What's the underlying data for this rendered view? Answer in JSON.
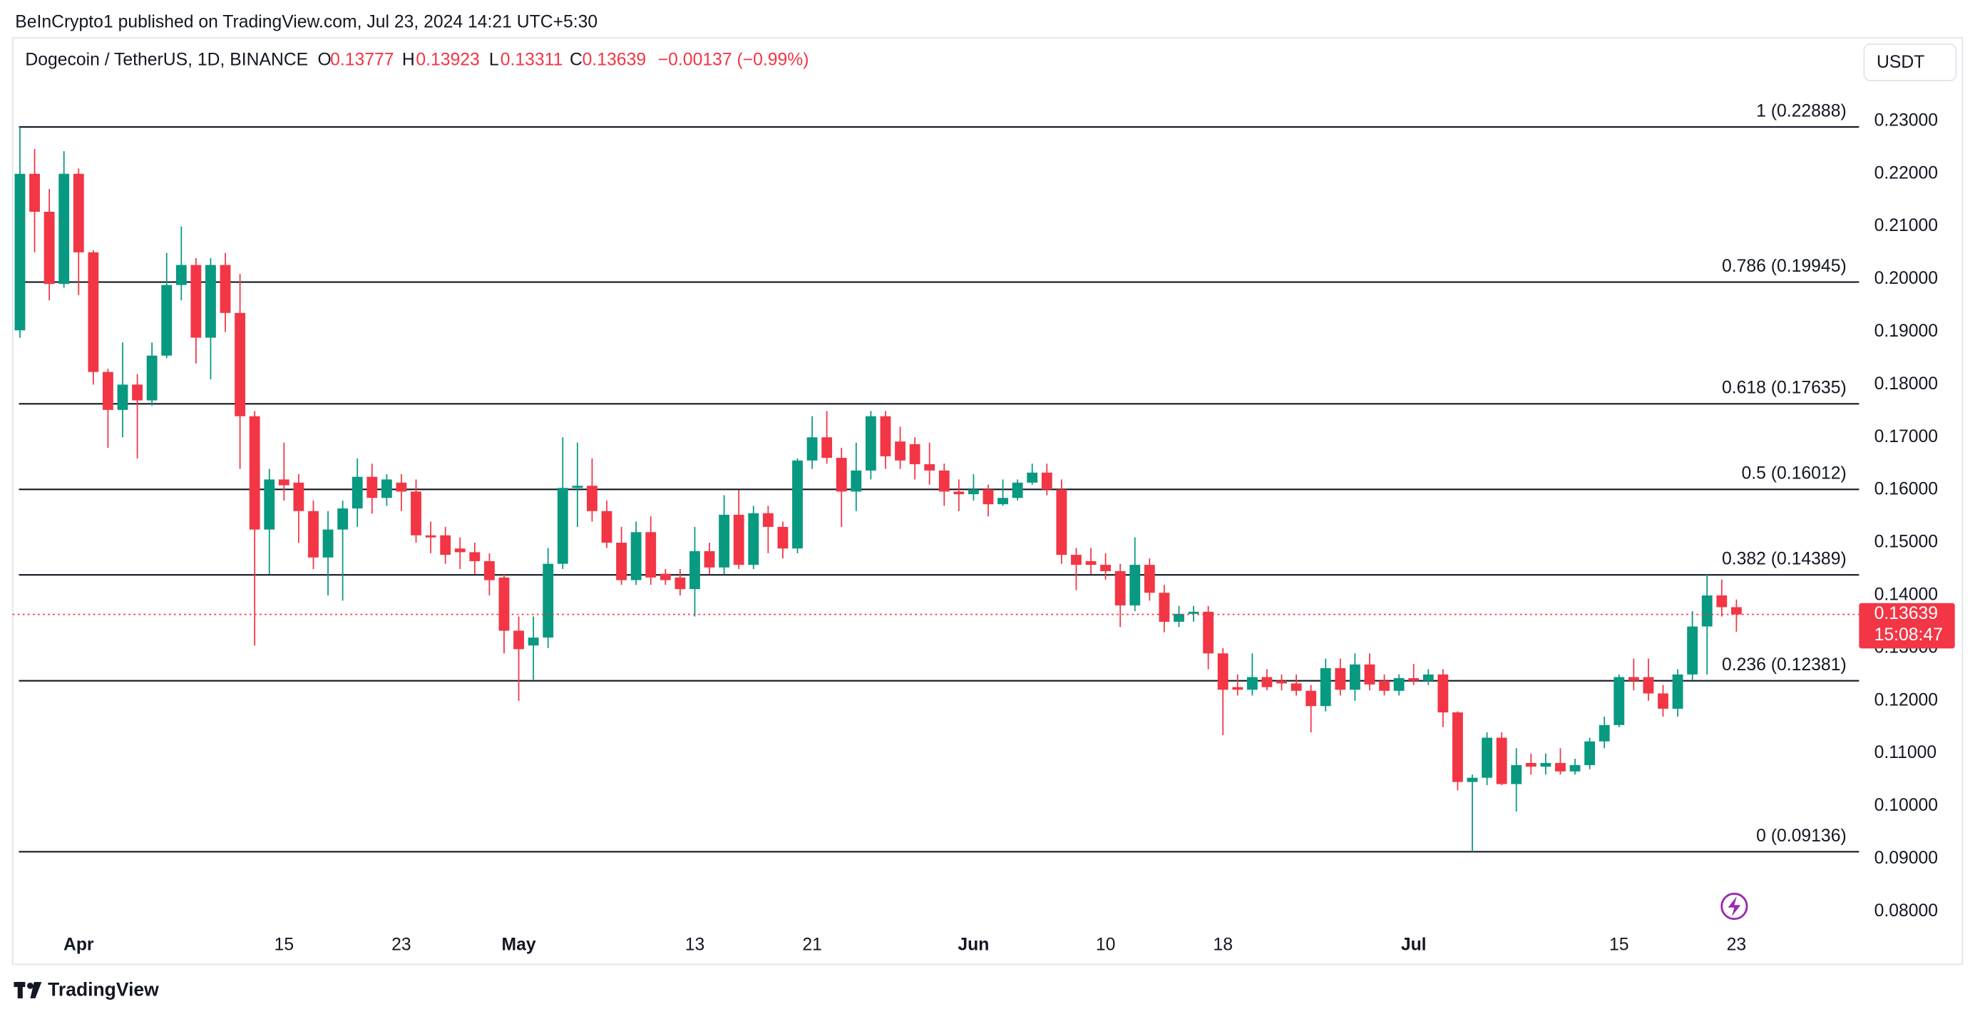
{
  "header": {
    "published": "BeInCrypto1 published on TradingView.com, Jul 23, 2024 14:21 UTC+5:30",
    "symbol": "Dogecoin / TetherUS, 1D, BINANCE",
    "ohlc": [
      {
        "key": "O",
        "value": 0.13777
      },
      {
        "key": "H",
        "value": 0.13923
      },
      {
        "key": "L",
        "value": 0.13311
      },
      {
        "key": "C",
        "value": 0.13639
      }
    ],
    "change": "−0.00137 (−0.99%)",
    "currency": "USDT",
    "logo": "TradingView"
  },
  "chart_data": {
    "type": "candlestick",
    "up_color": "#089981",
    "down_color": "#f23645",
    "categories": [
      "Mar 28",
      "Mar 29",
      "Mar 30",
      "Mar 31",
      "Apr 1",
      "Apr 2",
      "Apr 3",
      "Apr 4",
      "Apr 5",
      "Apr 6",
      "Apr 7",
      "Apr 8",
      "Apr 9",
      "Apr 10",
      "Apr 11",
      "Apr 12",
      "Apr 13",
      "Apr 14",
      "Apr 15",
      "Apr 16",
      "Apr 17",
      "Apr 18",
      "Apr 19",
      "Apr 20",
      "Apr 21",
      "Apr 22",
      "Apr 23",
      "Apr 24",
      "Apr 25",
      "Apr 26",
      "Apr 27",
      "Apr 28",
      "Apr 29",
      "Apr 30",
      "May 1",
      "May 2",
      "May 3",
      "May 4",
      "May 5",
      "May 6",
      "May 7",
      "May 8",
      "May 9",
      "May 10",
      "May 11",
      "May 12",
      "May 13",
      "May 14",
      "May 15",
      "May 16",
      "May 17",
      "May 18",
      "May 19",
      "May 20",
      "May 21",
      "May 22",
      "May 23",
      "May 24",
      "May 25",
      "May 26",
      "May 27",
      "May 28",
      "May 29",
      "May 30",
      "May 31",
      "Jun 1",
      "Jun 2",
      "Jun 3",
      "Jun 4",
      "Jun 5",
      "Jun 6",
      "Jun 7",
      "Jun 8",
      "Jun 9",
      "Jun 10",
      "Jun 11",
      "Jun 12",
      "Jun 13",
      "Jun 14",
      "Jun 15",
      "Jun 16",
      "Jun 17",
      "Jun 18",
      "Jun 19",
      "Jun 20",
      "Jun 21",
      "Jun 22",
      "Jun 23",
      "Jun 24",
      "Jun 25",
      "Jun 26",
      "Jun 27",
      "Jun 28",
      "Jun 29",
      "Jun 30",
      "Jul 1",
      "Jul 2",
      "Jul 3",
      "Jul 4",
      "Jul 5",
      "Jul 6",
      "Jul 7",
      "Jul 8",
      "Jul 9",
      "Jul 10",
      "Jul 11",
      "Jul 12",
      "Jul 13",
      "Jul 14",
      "Jul 15",
      "Jul 16",
      "Jul 17",
      "Jul 18",
      "Jul 19",
      "Jul 20",
      "Jul 21",
      "Jul 22",
      "Jul 23"
    ],
    "open": [
      0.1903,
      0.22,
      0.2128,
      0.1991,
      0.22,
      0.2051,
      0.1824,
      0.1752,
      0.18,
      0.177,
      0.1855,
      0.1989,
      0.2027,
      0.1889,
      0.2027,
      0.1936,
      0.174,
      0.1525,
      0.162,
      0.1614,
      0.156,
      0.1472,
      0.1525,
      0.1565,
      0.1625,
      0.1585,
      0.1614,
      0.1597,
      0.1514,
      0.1514,
      0.1489,
      0.1482,
      0.1465,
      0.1434,
      0.1333,
      0.1305,
      0.132,
      0.146,
      0.1604,
      0.1608,
      0.156,
      0.15,
      0.1429,
      0.152,
      0.1441,
      0.1434,
      0.1412,
      0.1484,
      0.1453,
      0.1553,
      0.1458,
      0.1556,
      0.153,
      0.1489,
      0.1656,
      0.17,
      0.1661,
      0.1597,
      0.1637,
      0.174,
      0.1692,
      0.1687,
      0.1649,
      0.1637,
      0.1597,
      0.1592,
      0.1601,
      0.1573,
      0.1585,
      0.1614,
      0.1633,
      0.1601,
      0.1477,
      0.1465,
      0.1458,
      0.1446,
      0.1381,
      0.1458,
      0.1405,
      0.135,
      0.1365,
      0.1369,
      0.129,
      0.1226,
      0.1221,
      0.1245,
      0.1238,
      0.1233,
      0.1219,
      0.119,
      0.1262,
      0.1221,
      0.1269,
      0.1238,
      0.1219,
      0.1243,
      0.1238,
      0.125,
      0.1178,
      0.1046,
      0.1054,
      0.113,
      0.1042,
      0.1082,
      0.1075,
      0.1082,
      0.1066,
      0.1078,
      0.1123,
      0.1154,
      0.1245,
      0.1245,
      0.1214,
      0.1185,
      0.125,
      0.1341,
      0.14,
      0.13777
    ],
    "high": [
      0.22888,
      0.2247,
      0.2171,
      0.2243,
      0.221,
      0.2055,
      0.183,
      0.188,
      0.182,
      0.188,
      0.205,
      0.21,
      0.204,
      0.204,
      0.205,
      0.201,
      0.175,
      0.164,
      0.169,
      0.163,
      0.158,
      0.156,
      0.158,
      0.166,
      0.165,
      0.163,
      0.163,
      0.162,
      0.154,
      0.153,
      0.151,
      0.15,
      0.148,
      0.144,
      0.136,
      0.136,
      0.149,
      0.17,
      0.169,
      0.166,
      0.158,
      0.153,
      0.154,
      0.155,
      0.145,
      0.145,
      0.153,
      0.15,
      0.159,
      0.16,
      0.157,
      0.157,
      0.154,
      0.166,
      0.174,
      0.175,
      0.168,
      0.169,
      0.175,
      0.175,
      0.172,
      0.17,
      0.169,
      0.165,
      0.162,
      0.163,
      0.161,
      0.162,
      0.162,
      0.165,
      0.165,
      0.162,
      0.149,
      0.149,
      0.148,
      0.146,
      0.151,
      0.147,
      0.142,
      0.138,
      0.138,
      0.138,
      0.13,
      0.125,
      0.129,
      0.126,
      0.125,
      0.125,
      0.123,
      0.128,
      0.128,
      0.129,
      0.129,
      0.125,
      0.125,
      0.127,
      0.126,
      0.126,
      0.118,
      0.106,
      0.114,
      0.114,
      0.111,
      0.11,
      0.11,
      0.111,
      0.109,
      0.113,
      0.117,
      0.125,
      0.128,
      0.128,
      0.123,
      0.126,
      0.137,
      0.144,
      0.143,
      0.13923
    ],
    "low": [
      0.1889,
      0.2051,
      0.196,
      0.1984,
      0.197,
      0.18,
      0.168,
      0.17,
      0.166,
      0.176,
      0.185,
      0.196,
      0.184,
      0.181,
      0.19,
      0.164,
      0.1305,
      0.144,
      0.158,
      0.15,
      0.145,
      0.14,
      0.139,
      0.153,
      0.1555,
      0.157,
      0.156,
      0.15,
      0.148,
      0.146,
      0.145,
      0.144,
      0.14,
      0.129,
      0.12,
      0.124,
      0.13,
      0.145,
      0.153,
      0.154,
      0.149,
      0.142,
      0.142,
      0.142,
      0.142,
      0.14,
      0.136,
      0.144,
      0.144,
      0.145,
      0.145,
      0.148,
      0.147,
      0.148,
      0.164,
      0.165,
      0.153,
      0.156,
      0.162,
      0.164,
      0.164,
      0.162,
      0.161,
      0.157,
      0.156,
      0.158,
      0.155,
      0.157,
      0.158,
      0.161,
      0.159,
      0.146,
      0.141,
      0.144,
      0.143,
      0.134,
      0.137,
      0.139,
      0.133,
      0.134,
      0.135,
      0.126,
      0.1135,
      0.121,
      0.121,
      0.122,
      0.122,
      0.121,
      0.114,
      0.118,
      0.121,
      0.12,
      0.122,
      0.121,
      0.121,
      0.123,
      0.123,
      0.115,
      0.103,
      0.09136,
      0.104,
      0.104,
      0.099,
      0.106,
      0.106,
      0.106,
      0.106,
      0.107,
      0.111,
      0.115,
      0.122,
      0.12,
      0.117,
      0.117,
      0.124,
      0.125,
      0.136,
      0.13311
    ],
    "close": [
      0.22,
      0.2128,
      0.1991,
      0.22,
      0.2051,
      0.1824,
      0.1752,
      0.18,
      0.177,
      0.1855,
      0.1989,
      0.2027,
      0.1889,
      0.2027,
      0.1936,
      0.174,
      0.1525,
      0.162,
      0.1609,
      0.156,
      0.1472,
      0.1525,
      0.1565,
      0.1625,
      0.1585,
      0.162,
      0.1597,
      0.1514,
      0.151,
      0.1477,
      0.1482,
      0.1465,
      0.1429,
      0.1333,
      0.1298,
      0.132,
      0.146,
      0.1604,
      0.1608,
      0.156,
      0.15,
      0.1429,
      0.152,
      0.1434,
      0.1429,
      0.1412,
      0.1484,
      0.1453,
      0.1553,
      0.1458,
      0.1556,
      0.153,
      0.1489,
      0.1656,
      0.17,
      0.1661,
      0.1597,
      0.1637,
      0.174,
      0.1664,
      0.1656,
      0.1649,
      0.1637,
      0.1597,
      0.1592,
      0.1601,
      0.1573,
      0.1585,
      0.1614,
      0.1633,
      0.1601,
      0.1477,
      0.1458,
      0.1458,
      0.1446,
      0.1381,
      0.1458,
      0.1405,
      0.135,
      0.1365,
      0.1369,
      0.129,
      0.1221,
      0.1221,
      0.1245,
      0.1226,
      0.1233,
      0.1219,
      0.119,
      0.1262,
      0.1221,
      0.1269,
      0.1231,
      0.1219,
      0.1243,
      0.1238,
      0.125,
      0.1178,
      0.1046,
      0.1054,
      0.113,
      0.1042,
      0.1078,
      0.1075,
      0.1082,
      0.1066,
      0.1078,
      0.1123,
      0.1154,
      0.1245,
      0.1238,
      0.1214,
      0.1185,
      0.125,
      0.1341,
      0.14,
      0.13777,
      0.13639
    ],
    "ylim": [
      0.07,
      0.2458
    ],
    "yticks": [
      {
        "value": 0.08,
        "label": "0.08000"
      },
      {
        "value": 0.09,
        "label": "0.09000"
      },
      {
        "value": 0.1,
        "label": "0.10000"
      },
      {
        "value": 0.11,
        "label": "0.11000"
      },
      {
        "value": 0.12,
        "label": "0.12000"
      },
      {
        "value": 0.13,
        "label": "0.13000"
      },
      {
        "value": 0.14,
        "label": "0.14000"
      },
      {
        "value": 0.15,
        "label": "0.15000"
      },
      {
        "value": 0.16,
        "label": "0.16000"
      },
      {
        "value": 0.17,
        "label": "0.17000"
      },
      {
        "value": 0.18,
        "label": "0.18000"
      },
      {
        "value": 0.19,
        "label": "0.19000"
      },
      {
        "value": 0.2,
        "label": "0.20000"
      },
      {
        "value": 0.21,
        "label": "0.21000"
      },
      {
        "value": 0.22,
        "label": "0.22000"
      },
      {
        "value": 0.23,
        "label": "0.23000"
      }
    ],
    "xticks": [
      {
        "value": "Apr 1",
        "label": "Apr"
      },
      {
        "value": "Apr 15",
        "label": "15"
      },
      {
        "value": "Apr 23",
        "label": "23"
      },
      {
        "value": "May 1",
        "label": "May"
      },
      {
        "value": "May 13",
        "label": "13"
      },
      {
        "value": "May 21",
        "label": "21"
      },
      {
        "value": "Jun 1",
        "label": "Jun"
      },
      {
        "value": "Jun 10",
        "label": "10"
      },
      {
        "value": "Jun 18",
        "label": "18"
      },
      {
        "value": "Jul 1",
        "label": "Jul"
      },
      {
        "value": "Jul 15",
        "label": "15"
      },
      {
        "value": "Jul 23",
        "label": "23"
      }
    ],
    "fib_levels": [
      {
        "label": "1 (0.22888)",
        "value": 0.22888
      },
      {
        "label": "0.786 (0.19945)",
        "value": 0.19945
      },
      {
        "label": "0.618 (0.17635)",
        "value": 0.17635
      },
      {
        "label": "0.5 (0.16012)",
        "value": 0.16012
      },
      {
        "label": "0.382 (0.14389)",
        "value": 0.14389
      },
      {
        "label": "0.236 (0.12381)",
        "value": 0.12381
      },
      {
        "label": "0 (0.09136)",
        "value": 0.09136
      }
    ],
    "last_price": {
      "value": 0.13639,
      "label": "0.13639",
      "countdown": "15:08:47"
    }
  }
}
